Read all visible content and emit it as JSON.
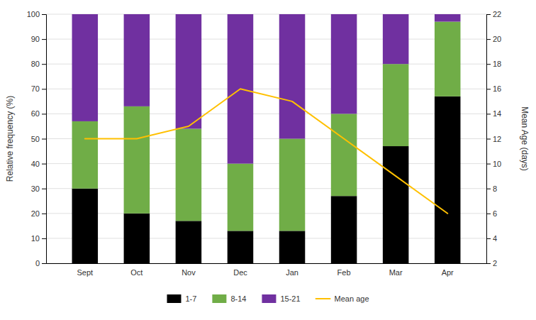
{
  "chart_data": {
    "type": "bar",
    "stacked": true,
    "categories": [
      "Sept",
      "Oct",
      "Nov",
      "Dec",
      "Jan",
      "Feb",
      "Mar",
      "Apr"
    ],
    "series": [
      {
        "name": "1-7",
        "color": "#000000",
        "values": [
          30,
          20,
          17,
          13,
          13,
          27,
          47,
          67
        ]
      },
      {
        "name": "8-14",
        "color": "#70ad47",
        "values": [
          27,
          43,
          37,
          27,
          37,
          33,
          33,
          30
        ]
      },
      {
        "name": "15-21",
        "color": "#7030a0",
        "values": [
          43,
          37,
          46,
          60,
          50,
          40,
          20,
          3
        ]
      },
      {
        "name": "Mean age",
        "type": "line",
        "axis": "y2",
        "color": "#ffc000",
        "values": [
          12,
          12,
          13,
          16,
          15,
          12,
          9,
          6
        ]
      }
    ],
    "y_label": "Relative frequency (%)",
    "y2_label": "Mean Age (days)",
    "ylim": [
      0,
      100
    ],
    "yticks": [
      0,
      10,
      20,
      30,
      40,
      50,
      60,
      70,
      80,
      90,
      100
    ],
    "y2lim": [
      2,
      22
    ],
    "y2ticks": [
      2,
      4,
      6,
      8,
      10,
      12,
      14,
      16,
      18,
      20,
      22
    ],
    "grid": true,
    "legend": "bottom"
  }
}
